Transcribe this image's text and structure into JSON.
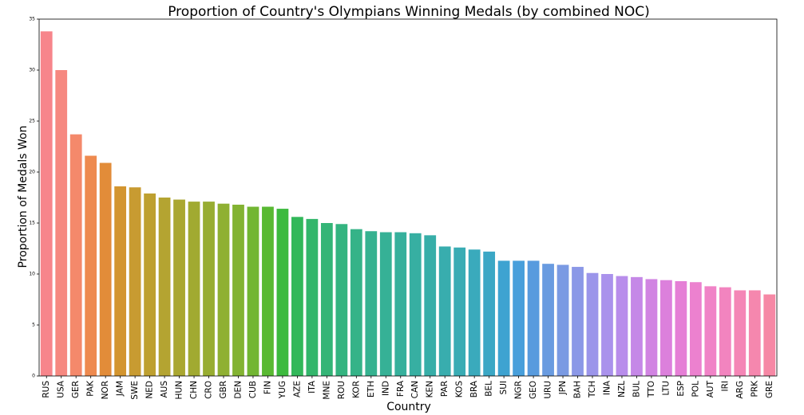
{
  "chart_data": {
    "type": "bar",
    "title": "Proportion of Country's Olympians Winning Medals (by combined NOC)",
    "xlabel": "Country",
    "ylabel": "Proportion of Medals Won",
    "ylim": [
      0,
      35
    ],
    "yticks": [
      0,
      5,
      10,
      15,
      20,
      25,
      30,
      35
    ],
    "grid": false,
    "legend": "none",
    "categories": [
      "RUS",
      "USA",
      "GER",
      "PAK",
      "NOR",
      "JAM",
      "SWE",
      "NED",
      "AUS",
      "HUN",
      "CHN",
      "CRO",
      "GBR",
      "DEN",
      "CUB",
      "FIN",
      "YUG",
      "AZE",
      "ITA",
      "MNE",
      "ROU",
      "KOR",
      "ETH",
      "IND",
      "FRA",
      "CAN",
      "KEN",
      "PAR",
      "KOS",
      "BRA",
      "BEL",
      "SUI",
      "NGR",
      "GEO",
      "URU",
      "JPN",
      "BAH",
      "TCH",
      "INA",
      "NZL",
      "BUL",
      "TTO",
      "LTU",
      "ESP",
      "POL",
      "AUT",
      "IRI",
      "ARG",
      "PRK",
      "GRE"
    ],
    "values": [
      33.8,
      30.0,
      23.7,
      21.6,
      20.9,
      18.6,
      18.5,
      17.9,
      17.5,
      17.3,
      17.1,
      17.1,
      16.9,
      16.8,
      16.6,
      16.6,
      16.4,
      15.6,
      15.4,
      15.0,
      14.9,
      14.4,
      14.2,
      14.1,
      14.1,
      14.0,
      13.8,
      12.7,
      12.6,
      12.4,
      12.2,
      11.3,
      11.3,
      11.3,
      11.0,
      10.9,
      10.7,
      10.1,
      10.0,
      9.8,
      9.7,
      9.5,
      9.4,
      9.3,
      9.2,
      8.8,
      8.7,
      8.4,
      8.4,
      8.0
    ],
    "colors": [
      "#f7858b",
      "#f68880",
      "#f4896b",
      "#ee8a4f",
      "#e28c39",
      "#d3952f",
      "#c89b31",
      "#bea030",
      "#b4a431",
      "#aaa731",
      "#a1aa31",
      "#98ad31",
      "#8fb032",
      "#83b332",
      "#72b632",
      "#59b932",
      "#3dba3e",
      "#32b85a",
      "#33b66b",
      "#34b577",
      "#34b480",
      "#35b388",
      "#35b290",
      "#36b196",
      "#36b09c",
      "#37afa2",
      "#37aea8",
      "#38adae",
      "#39acb4",
      "#3aaabc",
      "#3ba7c5",
      "#3ea3d1",
      "#489fdb",
      "#589bde",
      "#699be0",
      "#7a9ae3",
      "#8b98e7",
      "#9b95ea",
      "#aa92ec",
      "#b88deb",
      "#c588e7",
      "#d184e2",
      "#dc80dc",
      "#e57fd6",
      "#ec81cf",
      "#f083c7",
      "#f284bf",
      "#f486b6",
      "#f587ae",
      "#f688a5"
    ]
  }
}
